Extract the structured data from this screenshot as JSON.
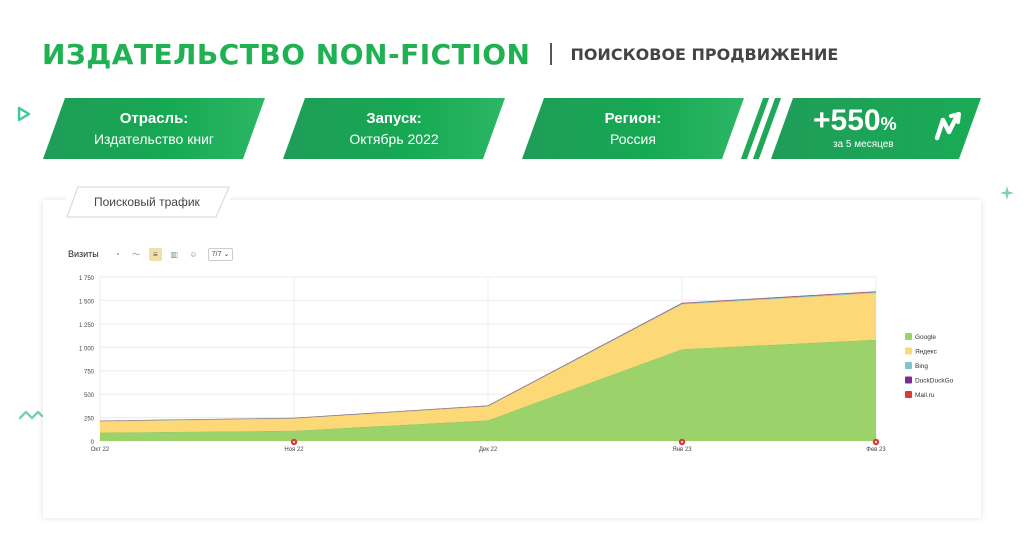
{
  "header": {
    "title": "ИЗДАТЕЛЬСТВО NON-FICTION",
    "subtitle": "ПОИСКОВОЕ ПРОДВИЖЕНИЕ"
  },
  "cards": [
    {
      "label": "Отрасль:",
      "value": "Издательство книг"
    },
    {
      "label": "Запуск:",
      "value": "Октябрь 2022"
    },
    {
      "label": "Регион:",
      "value": "Россия"
    }
  ],
  "kpi": {
    "value": "+550",
    "unit": "%",
    "caption": "за 5 месяцев"
  },
  "panel": {
    "tab_label": "Поисковый трафик"
  },
  "toolbar": {
    "label": "Визиты",
    "selector": "7/7"
  },
  "colors": {
    "brand_green": "#1fb152",
    "google": "#9bd26a",
    "yandex": "#fcd877",
    "bing": "#7ec5cf",
    "duckduckgo": "#7b2d8e",
    "mailru": "#d93a3a"
  },
  "chart_data": {
    "type": "area",
    "stacked": true,
    "x": [
      "Окт 22",
      "Ноя 22",
      "Дек 22",
      "Янв 23",
      "Фев 23"
    ],
    "yticks": [
      "0",
      "250",
      "500",
      "750",
      "1 000",
      "1 250",
      "1 500",
      "1 750"
    ],
    "ylim": [
      0,
      1750
    ],
    "grid": true,
    "legend_position": "right",
    "series": [
      {
        "name": "Google",
        "color": "#9bd26a",
        "values": [
          90,
          110,
          220,
          980,
          1080
        ]
      },
      {
        "name": "Яндекс",
        "color": "#fcd877",
        "values": [
          120,
          130,
          150,
          480,
          500
        ]
      },
      {
        "name": "Bing",
        "color": "#7ec5cf",
        "values": [
          4,
          4,
          5,
          8,
          10
        ]
      },
      {
        "name": "DuckDuckGo",
        "color": "#7b2d8e",
        "values": [
          1,
          1,
          2,
          3,
          3
        ]
      },
      {
        "name": "Mail.ru",
        "color": "#d93a3a",
        "values": [
          2,
          2,
          2,
          3,
          3
        ]
      }
    ],
    "annotations": [
      {
        "x": "Ноя 22",
        "marker": "red-flag"
      },
      {
        "x": "Янв 23",
        "marker": "red-flag"
      },
      {
        "x": "Фев 23",
        "marker": "red-flag"
      }
    ]
  }
}
